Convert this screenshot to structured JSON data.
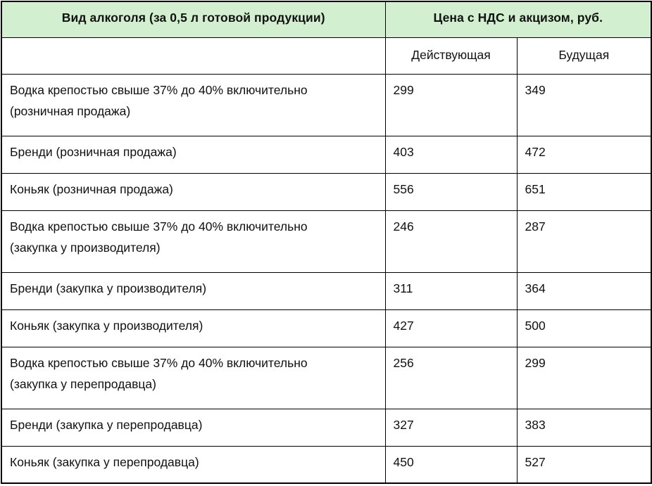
{
  "colors": {
    "header_bg": "#d2f0cf",
    "border": "#000000",
    "text": "#111111"
  },
  "table": {
    "col1_header": "Вид алкоголя (за 0,5 л готовой продукции)",
    "col2_header": "Цена с НДС и акцизом, руб.",
    "subheaders": {
      "current": "Действующая",
      "future": "Будущая"
    },
    "rows": [
      {
        "label": "Водка крепостью свыше 37% до 40% включительно\n(розничная продажа)",
        "current": "299",
        "future": "349"
      },
      {
        "label": "Бренди (розничная продажа)",
        "current": "403",
        "future": "472"
      },
      {
        "label": "Коньяк (розничная продажа)",
        "current": "556",
        "future": "651"
      },
      {
        "label": "Водка крепостью свыше 37% до 40% включительно\n(закупка у производителя)",
        "current": "246",
        "future": "287"
      },
      {
        "label": "Бренди (закупка у производителя)",
        "current": "311",
        "future": "364"
      },
      {
        "label": "Коньяк (закупка у производителя)",
        "current": "427",
        "future": "500"
      },
      {
        "label": "Водка крепостью свыше 37% до 40% включительно\n(закупка у перепродавца)",
        "current": "256",
        "future": "299"
      },
      {
        "label": "Бренди (закупка у перепродавца)",
        "current": "327",
        "future": "383"
      },
      {
        "label": "Коньяк (закупка у перепродавца)",
        "current": "450",
        "future": "527"
      }
    ]
  }
}
